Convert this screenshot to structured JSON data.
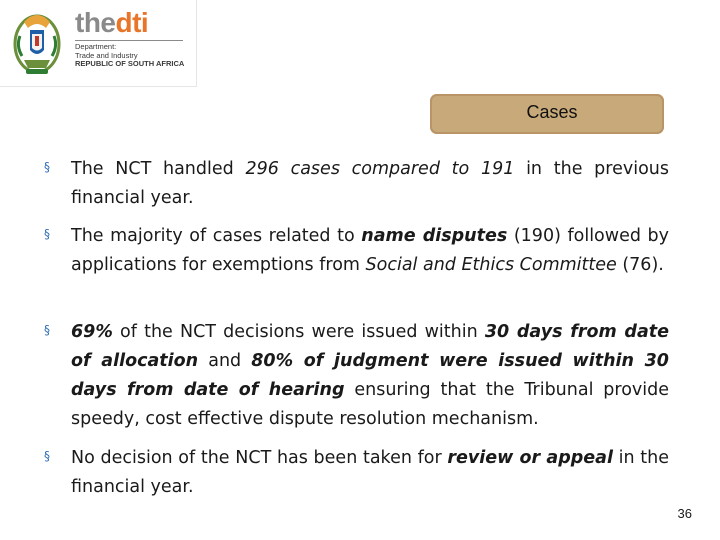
{
  "logo": {
    "the": "the",
    "dti": "dti",
    "department_line1": "Department:",
    "department_line2": "Trade and Industry",
    "department_line3": "REPUBLIC OF SOUTH AFRICA"
  },
  "title": "Cases",
  "bullets": [
    {
      "segments": [
        {
          "text": "The NCT handled ",
          "style": "normal"
        },
        {
          "text": "296 cases compared to 191",
          "style": "italic"
        },
        {
          "text": " in the previous financial year.",
          "style": "normal"
        }
      ]
    },
    {
      "segments": [
        {
          "text": "The majority of cases related to ",
          "style": "normal"
        },
        {
          "text": "name disputes",
          "style": "bold-italic"
        },
        {
          "text": " (190) followed by applications for exemptions from ",
          "style": "normal"
        },
        {
          "text": "Social and Ethics Committee",
          "style": "italic"
        },
        {
          "text": " (76).",
          "style": "normal"
        }
      ]
    },
    {
      "segments": [
        {
          "text": "69%",
          "style": "bold-italic"
        },
        {
          "text": " of the NCT decisions were issued within ",
          "style": "normal"
        },
        {
          "text": "30 days from date of allocation",
          "style": "bold-italic"
        },
        {
          "text": " and ",
          "style": "normal"
        },
        {
          "text": "80% of  judgment were issued within 30 days from date of hearing",
          "style": "bold-italic"
        },
        {
          "text": " ensuring that the Tribunal provide speedy, cost effective dispute resolution mechanism.",
          "style": "normal"
        }
      ]
    },
    {
      "segments": [
        {
          "text": "No decision of the NCT has been taken for ",
          "style": "normal"
        },
        {
          "text": "review or appeal",
          "style": "bold-italic"
        },
        {
          "text": " in the financial year.",
          "style": "normal"
        }
      ]
    }
  ],
  "bullet_marker": "§",
  "page_number": "36",
  "colors": {
    "title_pill": "#c8a97a",
    "bullet_marker": "#2f6db5",
    "dti_orange": "#e8752a"
  }
}
